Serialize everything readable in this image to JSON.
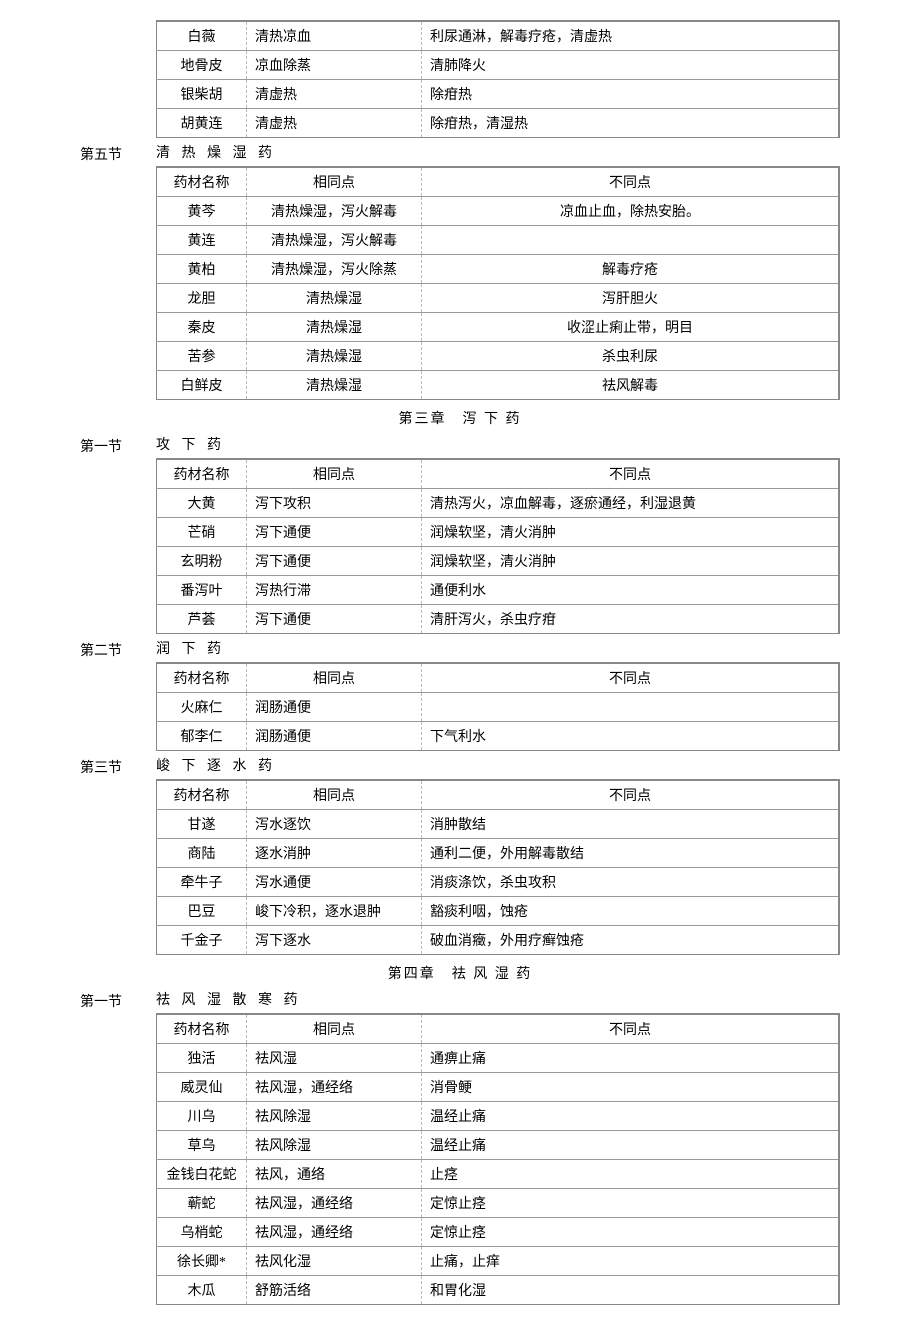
{
  "partialTableTop": {
    "rows": [
      [
        "白薇",
        "清热凉血",
        "利尿通淋，解毒疗疮，清虚热"
      ],
      [
        "地骨皮",
        "凉血除蒸",
        "清肺降火"
      ],
      [
        "银柴胡",
        "清虚热",
        "除疳热"
      ],
      [
        "胡黄连",
        "清虚热",
        "除疳热，清湿热"
      ]
    ]
  },
  "section5": {
    "label": "第五节",
    "title": "清 热 燥 湿 药",
    "headers": [
      "药材名称",
      "相同点",
      "不同点"
    ],
    "rows": [
      [
        "黄芩",
        "清热燥湿，泻火解毒",
        "凉血止血，除热安胎。"
      ],
      [
        "黄连",
        "清热燥湿，泻火解毒",
        ""
      ],
      [
        "黄柏",
        "清热燥湿，泻火除蒸",
        "解毒疗疮"
      ],
      [
        "龙胆",
        "清热燥湿",
        "泻肝胆火"
      ],
      [
        "秦皮",
        "清热燥湿",
        "收涩止痢止带，明目"
      ],
      [
        "苦参",
        "清热燥湿",
        "杀虫利尿"
      ],
      [
        "白鲜皮",
        "清热燥湿",
        "祛风解毒"
      ]
    ]
  },
  "chapter3": "第三章　泻 下 药",
  "ch3s1": {
    "label": "第一节",
    "title": "攻 下 药",
    "headers": [
      "药材名称",
      "相同点",
      "不同点"
    ],
    "rows": [
      [
        "大黄",
        "泻下攻积",
        "清热泻火，凉血解毒，逐瘀通经，利湿退黄"
      ],
      [
        "芒硝",
        "泻下通便",
        "润燥软坚，清火消肿"
      ],
      [
        "玄明粉",
        "泻下通便",
        "润燥软坚，清火消肿"
      ],
      [
        "番泻叶",
        "泻热行滞",
        "通便利水"
      ],
      [
        "芦荟",
        "泻下通便",
        "清肝泻火，杀虫疗疳"
      ]
    ]
  },
  "ch3s2": {
    "label": "第二节",
    "title": "润 下 药",
    "headers": [
      "药材名称",
      "相同点",
      "不同点"
    ],
    "rows": [
      [
        "火麻仁",
        "润肠通便",
        ""
      ],
      [
        "郁李仁",
        "润肠通便",
        "下气利水"
      ]
    ]
  },
  "ch3s3": {
    "label": "第三节",
    "title": "峻 下 逐 水 药",
    "headers": [
      "药材名称",
      "相同点",
      "不同点"
    ],
    "rows": [
      [
        "甘遂",
        "泻水逐饮",
        "消肿散结"
      ],
      [
        "商陆",
        "逐水消肿",
        "通利二便，外用解毒散结"
      ],
      [
        "牵牛子",
        "泻水通便",
        "消痰涤饮，杀虫攻积"
      ],
      [
        "巴豆",
        "峻下冷积，逐水退肿",
        "豁痰利咽，蚀疮"
      ],
      [
        "千金子",
        "泻下逐水",
        "破血消癥，外用疗癣蚀疮"
      ]
    ]
  },
  "chapter4": "第四章　祛 风 湿 药",
  "ch4s1": {
    "label": "第一节",
    "title": "祛 风 湿 散 寒 药",
    "headers": [
      "药材名称",
      "相同点",
      "不同点"
    ],
    "rows": [
      [
        "独活",
        "祛风湿",
        "通痹止痛"
      ],
      [
        "威灵仙",
        "祛风湿，通经络",
        "消骨鲠"
      ],
      [
        "川乌",
        "祛风除湿",
        "温经止痛"
      ],
      [
        "草乌",
        "祛风除湿",
        "温经止痛"
      ],
      [
        "金钱白花蛇",
        "祛风，通络",
        "止痉"
      ],
      [
        "蕲蛇",
        "祛风湿，通经络",
        "定惊止痉"
      ],
      [
        "乌梢蛇",
        "祛风湿，通经络",
        "定惊止痉"
      ],
      [
        "徐长卿*",
        "祛风化湿",
        "止痛，止痒"
      ],
      [
        "木瓜",
        "舒筋活络",
        "和胃化湿"
      ]
    ]
  }
}
